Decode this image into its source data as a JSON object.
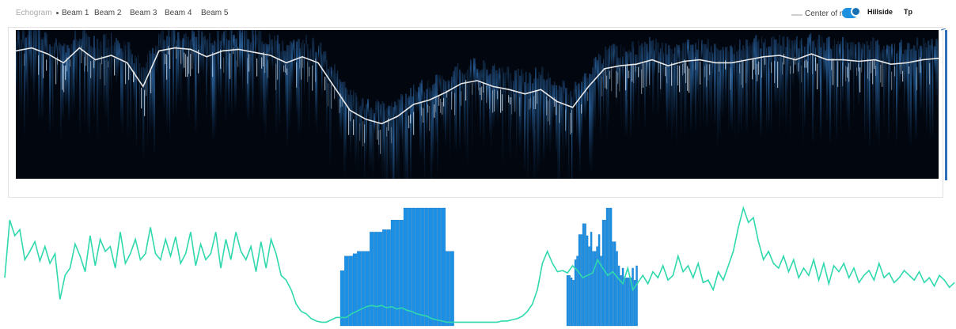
{
  "header": {
    "tabs": [
      {
        "label": "Echogram",
        "active": false
      },
      {
        "label": "Beam 1",
        "active": true
      },
      {
        "label": "Beam 2",
        "active": false
      },
      {
        "label": "Beam 3",
        "active": false
      },
      {
        "label": "Beam 4",
        "active": false
      },
      {
        "label": "Beam 5",
        "active": false
      }
    ],
    "legend_label": "Center of mass",
    "menu_extra_1": "Hillside",
    "menu_extra_2": "Tp"
  },
  "colors": {
    "echogram_dark": "#02070f",
    "echogram_bright": "#d8ecff",
    "center_of_mass_line": "#e8e8e8",
    "bar_fill": "#1c90e4",
    "line_green": "#2fd9ad",
    "toggle": "#1e90e0"
  },
  "chart_data": [
    {
      "type": "heatmap",
      "title": "",
      "xlabel": "",
      "ylabel": "",
      "grid": false,
      "legend": "top-right",
      "x": [
        0,
        20,
        40,
        60,
        80,
        100,
        120,
        140,
        160,
        180,
        200,
        220,
        240,
        260,
        280,
        300,
        320,
        340,
        360,
        380,
        400,
        420,
        440,
        460,
        480,
        500,
        520,
        540,
        560,
        580,
        600,
        620,
        640,
        660,
        680,
        700,
        720,
        740,
        760,
        780,
        800,
        820,
        840,
        860,
        880,
        900,
        920,
        940,
        960,
        980,
        1000,
        1020,
        1040,
        1060,
        1080,
        1100,
        1120,
        1140,
        1160
      ],
      "series": [
        {
          "name": "Center of mass",
          "values": [
            0.86,
            0.88,
            0.84,
            0.78,
            0.88,
            0.8,
            0.83,
            0.78,
            0.62,
            0.86,
            0.88,
            0.87,
            0.82,
            0.86,
            0.87,
            0.85,
            0.83,
            0.78,
            0.82,
            0.78,
            0.62,
            0.46,
            0.4,
            0.37,
            0.42,
            0.5,
            0.53,
            0.58,
            0.64,
            0.66,
            0.62,
            0.6,
            0.57,
            0.6,
            0.52,
            0.48,
            0.62,
            0.74,
            0.76,
            0.77,
            0.8,
            0.76,
            0.79,
            0.8,
            0.78,
            0.78,
            0.8,
            0.82,
            0.83,
            0.8,
            0.84,
            0.8,
            0.8,
            0.79,
            0.8,
            0.77,
            0.78,
            0.8,
            0.81
          ]
        }
      ]
    },
    {
      "type": "bar",
      "title": "",
      "xlabel": "",
      "ylabel": "",
      "grid": false,
      "ylim": [
        0,
        1
      ],
      "bars": {
        "values": [
          0.46,
          0.58,
          0.58,
          0.6,
          0.62,
          0.62,
          0.62,
          0.78,
          0.78,
          0.78,
          0.8,
          0.8,
          0.88,
          0.88,
          0.88,
          0.98,
          0.98,
          0.98,
          0.98,
          0.98,
          0.98,
          0.98,
          0.98,
          0.98,
          0.98,
          0.62,
          0.62,
          0.42,
          0.42,
          0.4,
          0.38,
          0.55,
          0.58,
          0.76,
          0.76,
          0.85,
          0.85,
          0.75,
          0.66,
          0.78,
          0.62,
          0.62,
          0.66,
          0.76,
          0.58,
          0.88,
          0.88,
          0.98,
          0.98,
          0.98,
          0.7,
          0.7,
          0.62,
          0.5,
          0.42,
          0.48,
          0.4,
          0.4,
          0.4,
          0.4,
          0.48,
          0.38,
          0.5
        ]
      },
      "series": [
        {
          "name": "",
          "values": [
            0.4,
            0.88,
            0.75,
            0.8,
            0.55,
            0.62,
            0.7,
            0.54,
            0.66,
            0.52,
            0.6,
            0.22,
            0.42,
            0.48,
            0.68,
            0.58,
            0.45,
            0.75,
            0.5,
            0.72,
            0.62,
            0.66,
            0.48,
            0.78,
            0.52,
            0.6,
            0.72,
            0.55,
            0.6,
            0.82,
            0.6,
            0.55,
            0.72,
            0.58,
            0.74,
            0.52,
            0.6,
            0.78,
            0.5,
            0.68,
            0.55,
            0.6,
            0.78,
            0.48,
            0.72,
            0.55,
            0.78,
            0.62,
            0.55,
            0.66,
            0.45,
            0.7,
            0.48,
            0.72,
            0.6,
            0.42,
            0.38,
            0.3,
            0.18,
            0.12,
            0.1,
            0.06,
            0.04,
            0.03,
            0.03,
            0.05,
            0.07,
            0.07,
            0.07,
            0.1,
            0.12,
            0.14,
            0.16,
            0.17,
            0.16,
            0.17,
            0.15,
            0.16,
            0.14,
            0.15,
            0.13,
            0.12,
            0.1,
            0.09,
            0.08,
            0.06,
            0.05,
            0.04,
            0.03,
            0.03,
            0.03,
            0.03,
            0.03,
            0.03,
            0.03,
            0.03,
            0.03,
            0.03,
            0.03,
            0.04,
            0.04,
            0.05,
            0.06,
            0.08,
            0.12,
            0.18,
            0.3,
            0.52,
            0.62,
            0.52,
            0.45,
            0.46,
            0.44,
            0.5,
            0.46,
            0.4,
            0.42,
            0.44,
            0.55,
            0.48,
            0.42,
            0.45,
            0.4,
            0.35,
            0.48,
            0.3,
            0.36,
            0.42,
            0.35,
            0.45,
            0.4,
            0.5,
            0.38,
            0.42,
            0.58,
            0.45,
            0.5,
            0.4,
            0.52,
            0.36,
            0.38,
            0.3,
            0.45,
            0.38,
            0.5,
            0.62,
            0.82,
            0.98,
            0.86,
            0.9,
            0.7,
            0.55,
            0.62,
            0.52,
            0.48,
            0.58,
            0.45,
            0.55,
            0.4,
            0.48,
            0.42,
            0.55,
            0.38,
            0.52,
            0.35,
            0.5,
            0.45,
            0.52,
            0.4,
            0.48,
            0.36,
            0.42,
            0.46,
            0.38,
            0.52,
            0.4,
            0.44,
            0.36,
            0.4,
            0.46,
            0.42,
            0.38,
            0.45,
            0.36,
            0.4,
            0.33,
            0.42,
            0.38,
            0.32,
            0.36
          ]
        }
      ]
    }
  ]
}
